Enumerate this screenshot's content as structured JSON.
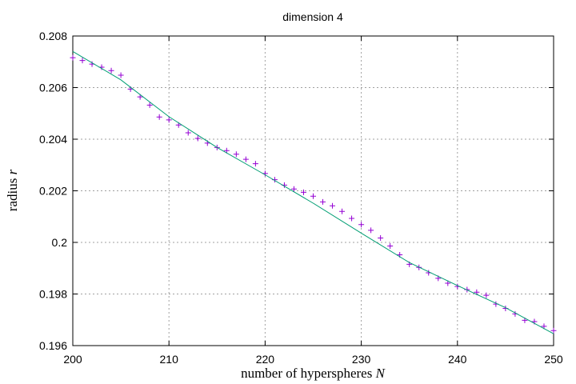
{
  "chart_data": {
    "type": "scatter",
    "title": "dimension 4",
    "xlabel": {
      "text": "number of hyperspheres ",
      "var": "N"
    },
    "ylabel": {
      "text": "radius ",
      "var": "r"
    },
    "xlim": [
      200,
      250
    ],
    "ylim": [
      0.196,
      0.208
    ],
    "x_ticks": [
      200,
      210,
      220,
      230,
      240,
      250
    ],
    "x_tick_labels": [
      "200",
      "210",
      "220",
      "230",
      "240",
      "250"
    ],
    "y_ticks": [
      0.196,
      0.198,
      0.2,
      0.202,
      0.204,
      0.206,
      0.208
    ],
    "y_tick_labels": [
      "0.196",
      "0.198",
      "0.2",
      "0.202",
      "0.204",
      "0.206",
      "0.208"
    ],
    "grid": true,
    "series": [
      {
        "marker": "plus",
        "color": "#9400d3",
        "x": [
          200,
          201,
          202,
          203,
          204,
          205,
          206,
          207,
          208,
          209,
          210,
          211,
          212,
          213,
          214,
          215,
          216,
          217,
          218,
          219,
          220,
          221,
          222,
          223,
          224,
          225,
          226,
          227,
          228,
          229,
          230,
          231,
          232,
          233,
          234,
          235,
          236,
          237,
          238,
          239,
          240,
          241,
          242,
          243,
          244,
          245,
          246,
          247,
          248,
          249,
          250
        ],
        "y": [
          0.20716,
          0.20705,
          0.20691,
          0.20679,
          0.20666,
          0.20648,
          0.20594,
          0.20564,
          0.20532,
          0.20486,
          0.20475,
          0.20455,
          0.20425,
          0.20403,
          0.20385,
          0.20368,
          0.20356,
          0.20342,
          0.20322,
          0.20305,
          0.20267,
          0.20243,
          0.20222,
          0.20207,
          0.20194,
          0.20179,
          0.20157,
          0.20142,
          0.2012,
          0.20093,
          0.20069,
          0.20047,
          0.20017,
          0.19986,
          0.19952,
          0.19915,
          0.19903,
          0.19882,
          0.19861,
          0.19842,
          0.19829,
          0.19817,
          0.19807,
          0.19795,
          0.19761,
          0.19744,
          0.19723,
          0.19698,
          0.19693,
          0.19675,
          0.19658
        ]
      },
      {
        "marker": "line",
        "color": "#009e73",
        "x": [
          200,
          205,
          210,
          215,
          220,
          225,
          230,
          235,
          240,
          245,
          250
        ],
        "y": [
          0.2074,
          0.2063,
          0.20487,
          0.20368,
          0.20262,
          0.20152,
          0.20036,
          0.19922,
          0.19833,
          0.19747,
          0.19646
        ]
      }
    ]
  }
}
